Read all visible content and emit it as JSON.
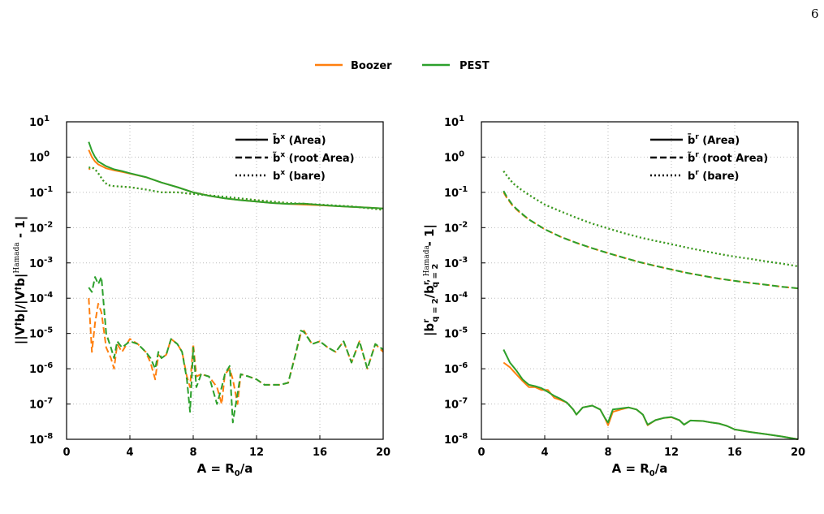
{
  "page": {
    "number": "6"
  },
  "legend": {
    "items": [
      {
        "label": "Boozer",
        "color": "#ff7f0e"
      },
      {
        "label": "PEST",
        "color": "#2ca02c"
      }
    ]
  },
  "chart_data": [
    {
      "type": "line",
      "yscale": "log",
      "xlim": [
        0,
        20
      ],
      "ylim_exponents": [
        -8,
        1
      ],
      "xticks": [
        0,
        4,
        8,
        12,
        16,
        20
      ],
      "xlabel": "A = R0/a",
      "ylabel": "||V†b|/|V†b|Hamada - 1|",
      "grid": true,
      "style_legend": [
        {
          "label": "b̄x (Area)",
          "dash": "solid"
        },
        {
          "label": "b̃x (root Area)",
          "dash": "dashed"
        },
        {
          "label": "bx (bare)",
          "dash": "dotted"
        }
      ],
      "legend_position": "top-right",
      "series": [
        {
          "color": "#ff7f0e",
          "dash": "solid",
          "x": [
            1.4,
            1.6,
            1.8,
            2,
            2.5,
            3,
            3.5,
            4,
            5,
            6,
            7,
            8,
            9,
            10,
            11,
            12,
            13,
            14,
            15,
            16,
            17,
            18,
            19,
            20
          ],
          "y": [
            1.6,
            1.0,
            0.75,
            0.62,
            0.48,
            0.42,
            0.38,
            0.34,
            0.27,
            0.19,
            0.14,
            0.1,
            0.08,
            0.068,
            0.06,
            0.055,
            0.05,
            0.047,
            0.045,
            0.043,
            0.041,
            0.039,
            0.037,
            0.035
          ]
        },
        {
          "color": "#2ca02c",
          "dash": "solid",
          "x": [
            1.4,
            1.6,
            1.8,
            2,
            2.5,
            3,
            3.5,
            4,
            5,
            6,
            7,
            8,
            9,
            10,
            11,
            12,
            13,
            14,
            15,
            16,
            17,
            18,
            19,
            20
          ],
          "y": [
            2.7,
            1.5,
            1.0,
            0.75,
            0.55,
            0.45,
            0.4,
            0.35,
            0.27,
            0.19,
            0.14,
            0.1,
            0.08,
            0.068,
            0.06,
            0.055,
            0.05,
            0.047,
            0.048,
            0.044,
            0.041,
            0.039,
            0.037,
            0.035
          ]
        },
        {
          "color": "#ff7f0e",
          "dash": "dotted",
          "x": [
            1.4,
            1.6,
            1.8,
            2,
            2.3,
            2.6,
            3,
            4,
            5,
            6,
            7,
            8,
            10,
            12,
            14,
            16,
            18,
            20
          ],
          "y": [
            0.45,
            0.5,
            0.45,
            0.35,
            0.22,
            0.16,
            0.15,
            0.14,
            0.12,
            0.1,
            0.1,
            0.09,
            0.075,
            0.06,
            0.05,
            0.045,
            0.04,
            0.032
          ]
        },
        {
          "color": "#2ca02c",
          "dash": "dotted",
          "x": [
            1.4,
            1.6,
            1.8,
            2,
            2.3,
            2.6,
            3,
            4,
            5,
            6,
            7,
            8,
            10,
            12,
            14,
            16,
            18,
            20
          ],
          "y": [
            0.5,
            0.52,
            0.45,
            0.35,
            0.22,
            0.16,
            0.15,
            0.14,
            0.12,
            0.1,
            0.1,
            0.09,
            0.075,
            0.06,
            0.05,
            0.045,
            0.04,
            0.032
          ]
        },
        {
          "color": "#ff7f0e",
          "dash": "dashed",
          "x": [
            1.4,
            1.6,
            1.8,
            2,
            2.2,
            2.5,
            2.8,
            3,
            3.2,
            3.5,
            4,
            4.5,
            5,
            5.3,
            5.6,
            5.8,
            6,
            6.3,
            6.6,
            7,
            7.3,
            7.6,
            7.8,
            8,
            8.2,
            8.5,
            9,
            9.5,
            9.8,
            10,
            10.3,
            10.5,
            10.8,
            11,
            11.5,
            12,
            12.5,
            13,
            13.5,
            14,
            14.5,
            14.8,
            15,
            15.5,
            16,
            16.5,
            17,
            17.5,
            18,
            18.5,
            19,
            19.5,
            20
          ],
          "y": [
            0.0001,
            3e-06,
            2e-05,
            7e-05,
            4e-05,
            4e-06,
            2e-06,
            1e-06,
            5e-06,
            3e-06,
            7e-06,
            5e-06,
            3e-06,
            1.5e-06,
            5e-07,
            2.5e-06,
            2e-06,
            2.5e-06,
            7e-06,
            5e-06,
            3e-06,
            6e-07,
            3e-07,
            5e-06,
            6e-07,
            7e-07,
            6e-07,
            3e-07,
            1e-07,
            7e-07,
            1e-06,
            5e-07,
            1e-07,
            7e-07,
            6e-07,
            5e-07,
            3.5e-07,
            3.5e-07,
            3.5e-07,
            4e-07,
            3e-06,
            1e-05,
            1.2e-05,
            5e-06,
            6e-06,
            4e-06,
            3e-06,
            6e-06,
            1.5e-06,
            6e-06,
            1e-06,
            5e-06,
            3e-06
          ]
        },
        {
          "color": "#2ca02c",
          "dash": "dashed",
          "x": [
            1.4,
            1.6,
            1.8,
            2,
            2.2,
            2.5,
            2.8,
            3,
            3.2,
            3.5,
            4,
            4.5,
            5,
            5.3,
            5.6,
            5.8,
            6,
            6.3,
            6.6,
            7,
            7.3,
            7.6,
            7.8,
            8,
            8.2,
            8.5,
            9,
            9.5,
            9.8,
            10,
            10.3,
            10.5,
            10.8,
            11,
            11.5,
            12,
            12.5,
            13,
            13.5,
            14,
            14.5,
            14.8,
            15,
            15.5,
            16,
            16.5,
            17,
            17.5,
            18,
            18.5,
            19,
            19.5,
            20
          ],
          "y": [
            0.0002,
            0.00015,
            0.0004,
            0.00025,
            0.0004,
            1e-05,
            4e-06,
            2e-06,
            6e-06,
            4e-06,
            6e-06,
            5e-06,
            3e-06,
            2e-06,
            1e-06,
            3e-06,
            2e-06,
            2.5e-06,
            7e-06,
            5e-06,
            3e-06,
            5e-07,
            6e-08,
            4e-06,
            3e-07,
            7e-07,
            6e-07,
            1e-07,
            3e-07,
            7e-07,
            1.2e-06,
            3e-08,
            2e-07,
            7e-07,
            6e-07,
            5e-07,
            3.5e-07,
            3.5e-07,
            3.5e-07,
            4e-07,
            3e-06,
            1.2e-05,
            1.1e-05,
            5e-06,
            6e-06,
            4e-06,
            3e-06,
            6e-06,
            1.5e-06,
            6e-06,
            1e-06,
            5e-06,
            3.5e-06
          ]
        }
      ]
    },
    {
      "type": "line",
      "yscale": "log",
      "xlim": [
        0,
        20
      ],
      "ylim_exponents": [
        -8,
        1
      ],
      "xticks": [
        0,
        4,
        8,
        12,
        16,
        20
      ],
      "xlabel": "A = R0/a",
      "ylabel": "|br q=2/br,Hamada q=2 - 1|",
      "grid": true,
      "style_legend": [
        {
          "label": "b̄r (Area)",
          "dash": "solid"
        },
        {
          "label": "b̃r (root Area)",
          "dash": "dashed"
        },
        {
          "label": "br (bare)",
          "dash": "dotted"
        }
      ],
      "legend_position": "top-right",
      "series": [
        {
          "color": "#ff7f0e",
          "dash": "dotted",
          "x": [
            1.4,
            1.6,
            2,
            2.5,
            3,
            4,
            5,
            6,
            7,
            8,
            9,
            10,
            11,
            12,
            13,
            14,
            15,
            16,
            17,
            18,
            19,
            20
          ],
          "y": [
            0.4,
            0.3,
            0.18,
            0.12,
            0.085,
            0.045,
            0.029,
            0.019,
            0.013,
            0.0095,
            0.007,
            0.0053,
            0.0042,
            0.0034,
            0.0027,
            0.0022,
            0.0018,
            0.0015,
            0.0013,
            0.0011,
            0.00095,
            0.0008
          ]
        },
        {
          "color": "#2ca02c",
          "dash": "dotted",
          "x": [
            1.4,
            1.6,
            2,
            2.5,
            3,
            4,
            5,
            6,
            7,
            8,
            9,
            10,
            11,
            12,
            13,
            14,
            15,
            16,
            17,
            18,
            19,
            20
          ],
          "y": [
            0.4,
            0.3,
            0.18,
            0.12,
            0.085,
            0.045,
            0.029,
            0.019,
            0.013,
            0.0095,
            0.007,
            0.0053,
            0.0042,
            0.0034,
            0.0027,
            0.0022,
            0.0018,
            0.0015,
            0.0013,
            0.0011,
            0.00095,
            0.0008
          ]
        },
        {
          "color": "#ff7f0e",
          "dash": "dashed",
          "x": [
            1.4,
            1.6,
            2,
            2.5,
            3,
            4,
            5,
            6,
            7,
            8,
            9,
            10,
            11,
            12,
            13,
            14,
            15,
            16,
            17,
            18,
            19,
            20
          ],
          "y": [
            0.1,
            0.07,
            0.04,
            0.025,
            0.017,
            0.009,
            0.0055,
            0.0037,
            0.0026,
            0.0019,
            0.0014,
            0.00105,
            0.00082,
            0.00065,
            0.00052,
            0.00043,
            0.00036,
            0.00031,
            0.00027,
            0.00024,
            0.00021,
            0.00019
          ]
        },
        {
          "color": "#2ca02c",
          "dash": "dashed",
          "x": [
            1.4,
            1.6,
            2,
            2.5,
            3,
            4,
            5,
            6,
            7,
            8,
            9,
            10,
            11,
            12,
            13,
            14,
            15,
            16,
            17,
            18,
            19,
            20
          ],
          "y": [
            0.11,
            0.075,
            0.042,
            0.026,
            0.017,
            0.009,
            0.0055,
            0.0037,
            0.0026,
            0.0019,
            0.0014,
            0.00105,
            0.00082,
            0.00065,
            0.00052,
            0.00043,
            0.00036,
            0.00031,
            0.00027,
            0.00024,
            0.00021,
            0.00019
          ]
        },
        {
          "color": "#ff7f0e",
          "dash": "solid",
          "x": [
            1.4,
            1.8,
            2.2,
            2.6,
            3,
            3.4,
            3.8,
            4.2,
            4.6,
            5,
            5.4,
            5.8,
            6,
            6.4,
            7,
            7.5,
            7.8,
            8,
            8.3,
            8.8,
            9.3,
            9.8,
            10.2,
            10.5,
            11,
            11.5,
            12,
            12.5,
            12.8,
            13.2,
            14,
            14.5,
            15,
            15.5,
            16,
            17,
            18,
            19,
            20
          ],
          "y": [
            1.5e-06,
            1.1e-06,
            7e-07,
            4.5e-07,
            3e-07,
            3e-07,
            2.5e-07,
            2.5e-07,
            1.5e-07,
            1.3e-07,
            1.1e-07,
            7e-08,
            5e-08,
            8e-08,
            9e-08,
            7e-08,
            4e-08,
            2.5e-08,
            6e-08,
            7e-08,
            8e-08,
            7e-08,
            5e-08,
            2.5e-08,
            3.5e-08,
            4e-08,
            4.2e-08,
            3.5e-08,
            2.6e-08,
            3.4e-08,
            3.3e-08,
            3e-08,
            2.8e-08,
            2.4e-08,
            1.9e-08,
            1.6e-08,
            1.4e-08,
            1.2e-08,
            1e-08
          ]
        },
        {
          "color": "#2ca02c",
          "dash": "solid",
          "x": [
            1.4,
            1.8,
            2.2,
            2.6,
            3,
            3.4,
            3.8,
            4.2,
            4.6,
            5,
            5.4,
            5.8,
            6,
            6.4,
            7,
            7.5,
            7.8,
            8,
            8.3,
            8.8,
            9.3,
            9.8,
            10.2,
            10.5,
            11,
            11.5,
            12,
            12.5,
            12.8,
            13.2,
            14,
            14.5,
            15,
            15.5,
            16,
            17,
            18,
            19,
            20
          ],
          "y": [
            3.5e-06,
            1.5e-06,
            9e-07,
            5e-07,
            3.5e-07,
            3.2e-07,
            2.8e-07,
            2.2e-07,
            1.7e-07,
            1.4e-07,
            1.1e-07,
            7e-08,
            5e-08,
            8e-08,
            9e-08,
            7e-08,
            4e-08,
            3e-08,
            7e-08,
            7.5e-08,
            8e-08,
            7e-08,
            5e-08,
            2.6e-08,
            3.5e-08,
            4e-08,
            4.3e-08,
            3.5e-08,
            2.6e-08,
            3.4e-08,
            3.3e-08,
            3e-08,
            2.8e-08,
            2.4e-08,
            1.9e-08,
            1.6e-08,
            1.4e-08,
            1.2e-08,
            1e-08
          ]
        }
      ]
    }
  ]
}
